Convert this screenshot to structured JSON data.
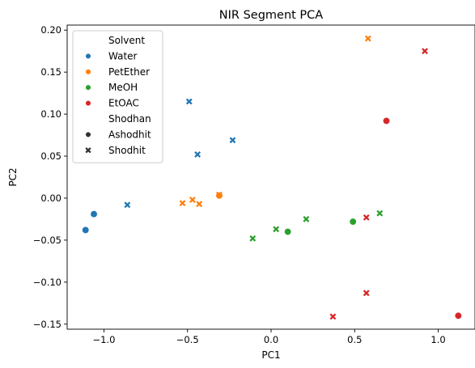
{
  "chart_data": {
    "type": "scatter",
    "title": "NIR Segment PCA",
    "xlabel": "PC1",
    "ylabel": "PC2",
    "xlim": [
      -1.22,
      1.22
    ],
    "ylim": [
      -0.156,
      0.206
    ],
    "xticks": [
      -1.0,
      -0.5,
      0.0,
      0.5,
      1.0
    ],
    "xtick_labels": [
      "−1.0",
      "−0.5",
      "0.0",
      "0.5",
      "1.0"
    ],
    "yticks": [
      -0.15,
      -0.1,
      -0.05,
      0.0,
      0.05,
      0.1,
      0.15,
      0.2
    ],
    "ytick_labels": [
      "−0.15",
      "−0.10",
      "−0.05",
      "0.00",
      "0.05",
      "0.10",
      "0.15",
      "0.20"
    ],
    "grid": false,
    "legend": {
      "placement": "top-left",
      "hue_title": "Solvent",
      "style_title": "Shodhan",
      "hue_entries": [
        {
          "label": "Water",
          "color": "#1f77b4"
        },
        {
          "label": "PetEther",
          "color": "#ff7f0e"
        },
        {
          "label": "MeOH",
          "color": "#2ca02c"
        },
        {
          "label": "EtOAC",
          "color": "#d62728"
        }
      ],
      "style_entries": [
        {
          "label": "Ashodhit",
          "marker": "circle"
        },
        {
          "label": "Shodhit",
          "marker": "x"
        }
      ]
    },
    "series": [
      {
        "name": "Water",
        "color": "#1f77b4",
        "points": [
          {
            "x": -1.11,
            "y": -0.038,
            "marker": "circle"
          },
          {
            "x": -1.06,
            "y": -0.019,
            "marker": "circle"
          },
          {
            "x": -0.86,
            "y": -0.008,
            "marker": "x"
          },
          {
            "x": -0.49,
            "y": 0.115,
            "marker": "x"
          },
          {
            "x": -0.44,
            "y": 0.052,
            "marker": "x"
          },
          {
            "x": -0.23,
            "y": 0.069,
            "marker": "x"
          }
        ]
      },
      {
        "name": "PetEther",
        "color": "#ff7f0e",
        "points": [
          {
            "x": -0.53,
            "y": -0.006,
            "marker": "x"
          },
          {
            "x": -0.47,
            "y": -0.002,
            "marker": "x"
          },
          {
            "x": -0.43,
            "y": -0.007,
            "marker": "x"
          },
          {
            "x": -0.31,
            "y": 0.003,
            "marker": "circle"
          },
          {
            "x": -0.31,
            "y": 0.004,
            "marker": "x"
          },
          {
            "x": 0.58,
            "y": 0.19,
            "marker": "x"
          }
        ]
      },
      {
        "name": "MeOH",
        "color": "#2ca02c",
        "points": [
          {
            "x": -0.11,
            "y": -0.048,
            "marker": "x"
          },
          {
            "x": 0.03,
            "y": -0.037,
            "marker": "x"
          },
          {
            "x": 0.1,
            "y": -0.04,
            "marker": "circle"
          },
          {
            "x": 0.21,
            "y": -0.025,
            "marker": "x"
          },
          {
            "x": 0.49,
            "y": -0.028,
            "marker": "circle"
          },
          {
            "x": 0.65,
            "y": -0.018,
            "marker": "x"
          }
        ]
      },
      {
        "name": "EtOAC",
        "color": "#d62728",
        "points": [
          {
            "x": 0.37,
            "y": -0.141,
            "marker": "x"
          },
          {
            "x": 0.57,
            "y": -0.113,
            "marker": "x"
          },
          {
            "x": 0.57,
            "y": -0.023,
            "marker": "x"
          },
          {
            "x": 0.69,
            "y": 0.092,
            "marker": "circle"
          },
          {
            "x": 0.92,
            "y": 0.175,
            "marker": "x"
          },
          {
            "x": 1.12,
            "y": -0.14,
            "marker": "circle"
          }
        ]
      }
    ]
  }
}
